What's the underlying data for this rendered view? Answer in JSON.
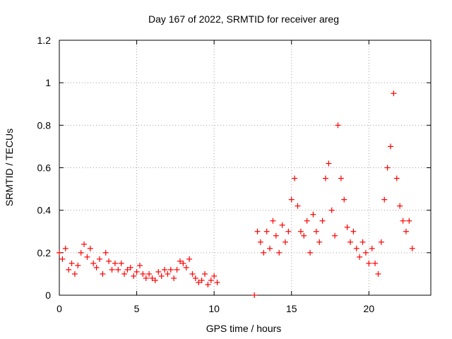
{
  "chart_data": {
    "type": "scatter",
    "title": "Day 167 of 2022, SRMTID for receiver areg",
    "xlabel": "GPS time / hours",
    "ylabel": "SRMTID / TECUs",
    "xlim": [
      0,
      24
    ],
    "ylim": [
      0,
      1.2
    ],
    "xticks": [
      0,
      5,
      10,
      15,
      20
    ],
    "yticks": [
      0,
      0.2,
      0.4,
      0.6,
      0.8,
      1,
      1.2
    ],
    "xtick_labels": [
      "0",
      "5",
      "10",
      "15",
      "20"
    ],
    "ytick_labels": [
      "0",
      "0.2",
      "0.4",
      "0.6",
      "0.8",
      "1",
      "1.2"
    ],
    "grid": true,
    "marker": "+",
    "series": [
      {
        "name": "SRMTID",
        "color": "#ff0000",
        "x": [
          0.0,
          0.2,
          0.4,
          0.6,
          0.8,
          1.0,
          1.2,
          1.4,
          1.6,
          1.8,
          2.0,
          2.2,
          2.4,
          2.6,
          2.8,
          3.0,
          3.2,
          3.4,
          3.6,
          3.8,
          4.0,
          4.2,
          4.4,
          4.6,
          4.8,
          5.0,
          5.2,
          5.4,
          5.6,
          5.8,
          6.0,
          6.2,
          6.4,
          6.6,
          6.8,
          7.0,
          7.2,
          7.4,
          7.6,
          7.8,
          8.0,
          8.2,
          8.4,
          8.6,
          8.8,
          9.0,
          9.2,
          9.4,
          9.6,
          9.8,
          10.0,
          10.2,
          12.6,
          12.8,
          13.0,
          13.2,
          13.4,
          13.6,
          13.8,
          14.0,
          14.2,
          14.4,
          14.6,
          14.8,
          15.0,
          15.2,
          15.4,
          15.6,
          15.8,
          16.0,
          16.2,
          16.4,
          16.6,
          16.8,
          17.0,
          17.2,
          17.4,
          17.6,
          17.8,
          18.0,
          18.2,
          18.4,
          18.6,
          18.8,
          19.0,
          19.2,
          19.4,
          19.6,
          19.8,
          20.0,
          20.2,
          20.4,
          20.6,
          20.8,
          21.0,
          21.2,
          21.4,
          21.6,
          21.8,
          22.0,
          22.2,
          22.4,
          22.6,
          22.8
        ],
        "y": [
          0.2,
          0.17,
          0.22,
          0.12,
          0.15,
          0.1,
          0.14,
          0.2,
          0.24,
          0.18,
          0.22,
          0.15,
          0.13,
          0.17,
          0.1,
          0.2,
          0.16,
          0.12,
          0.15,
          0.12,
          0.15,
          0.1,
          0.12,
          0.13,
          0.09,
          0.11,
          0.14,
          0.1,
          0.08,
          0.1,
          0.08,
          0.07,
          0.11,
          0.09,
          0.12,
          0.1,
          0.12,
          0.08,
          0.12,
          0.16,
          0.15,
          0.13,
          0.17,
          0.1,
          0.08,
          0.06,
          0.07,
          0.1,
          0.05,
          0.07,
          0.09,
          0.06,
          0.0,
          0.3,
          0.25,
          0.2,
          0.3,
          0.22,
          0.35,
          0.28,
          0.2,
          0.33,
          0.25,
          0.3,
          0.45,
          0.55,
          0.42,
          0.3,
          0.28,
          0.35,
          0.2,
          0.38,
          0.3,
          0.25,
          0.35,
          0.55,
          0.62,
          0.4,
          0.28,
          0.8,
          0.55,
          0.45,
          0.32,
          0.25,
          0.3,
          0.22,
          0.18,
          0.25,
          0.2,
          0.15,
          0.22,
          0.15,
          0.1,
          0.25,
          0.45,
          0.6,
          0.7,
          0.95,
          0.55,
          0.42,
          0.35,
          0.3,
          0.35,
          0.22
        ]
      }
    ]
  }
}
